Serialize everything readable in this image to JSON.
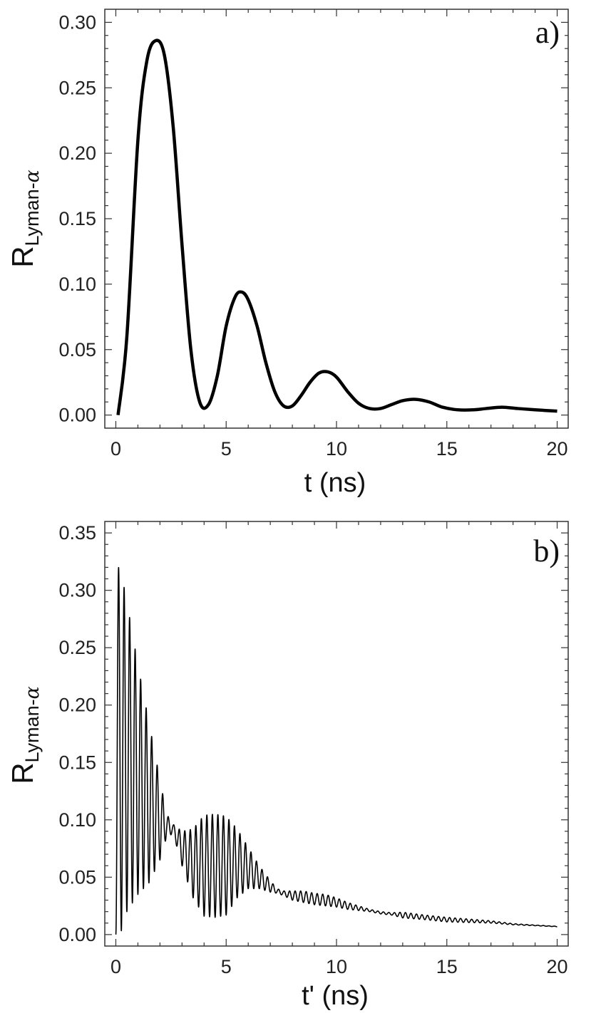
{
  "chart_data": [
    {
      "type": "line",
      "panel_label": "a)",
      "xlabel": "t (ns)",
      "ylabel_main": "R",
      "ylabel_sub": "Lyman-",
      "ylabel_greek": "α",
      "xlim": [
        -0.5,
        20.5
      ],
      "ylim": [
        -0.01,
        0.31
      ],
      "x_ticks": [
        0,
        5,
        10,
        15,
        20
      ],
      "x_tick_labels": [
        "0",
        "5",
        "10",
        "15",
        "20"
      ],
      "y_ticks": [
        0.0,
        0.05,
        0.1,
        0.15,
        0.2,
        0.25,
        0.3
      ],
      "y_tick_labels": [
        "0.00",
        "0.05",
        "0.10",
        "0.15",
        "0.20",
        "0.25",
        "0.30"
      ],
      "grid": false,
      "series": [
        {
          "style": "thick",
          "x": [
            0.1,
            0.5,
            1.0,
            1.4,
            1.8,
            2.2,
            2.6,
            3.0,
            3.4,
            3.8,
            4.2,
            4.6,
            5.0,
            5.4,
            5.7,
            6.0,
            6.4,
            6.8,
            7.2,
            7.6,
            8.0,
            8.4,
            8.8,
            9.2,
            9.6,
            10.0,
            10.5,
            11.0,
            11.5,
            12.0,
            12.5,
            13.0,
            13.6,
            14.2,
            14.8,
            15.5,
            16.2,
            16.8,
            17.5,
            18.2,
            19.0,
            20.0
          ],
          "y": [
            0.0,
            0.06,
            0.21,
            0.27,
            0.286,
            0.275,
            0.22,
            0.13,
            0.05,
            0.01,
            0.008,
            0.03,
            0.068,
            0.09,
            0.094,
            0.088,
            0.068,
            0.04,
            0.018,
            0.007,
            0.007,
            0.015,
            0.025,
            0.032,
            0.033,
            0.029,
            0.018,
            0.009,
            0.005,
            0.005,
            0.008,
            0.011,
            0.012,
            0.01,
            0.006,
            0.004,
            0.004,
            0.005,
            0.006,
            0.005,
            0.004,
            0.003
          ]
        }
      ]
    },
    {
      "type": "line",
      "panel_label": "b)",
      "xlabel": "t' (ns)",
      "ylabel_main": "R",
      "ylabel_sub": "Lyman-",
      "ylabel_greek": "α",
      "xlim": [
        -0.5,
        20.5
      ],
      "ylim": [
        -0.01,
        0.36
      ],
      "x_ticks": [
        0,
        5,
        10,
        15,
        20
      ],
      "x_tick_labels": [
        "0",
        "5",
        "10",
        "15",
        "20"
      ],
      "y_ticks": [
        0.0,
        0.05,
        0.1,
        0.15,
        0.2,
        0.25,
        0.3,
        0.35
      ],
      "y_tick_labels": [
        "0.00",
        "0.05",
        "0.10",
        "0.15",
        "0.20",
        "0.25",
        "0.30",
        "0.35"
      ],
      "grid": false,
      "oscillation_period_ns": 0.25,
      "envelope": {
        "t": [
          0.0,
          0.2,
          0.5,
          1.0,
          1.5,
          2.0,
          2.3,
          2.6,
          3.0,
          3.5,
          4.0,
          4.5,
          5.0,
          5.5,
          6.0,
          6.5,
          7.0,
          7.3,
          7.6,
          8.0,
          8.5,
          9.0,
          9.5,
          10.0,
          10.5,
          11.0,
          11.5,
          12.0,
          12.5,
          13.0,
          14.0,
          15.0,
          16.0,
          17.0,
          18.0,
          19.0,
          20.0
        ],
        "center": [
          0.16,
          0.16,
          0.155,
          0.135,
          0.115,
          0.1,
          0.095,
          0.092,
          0.075,
          0.062,
          0.06,
          0.06,
          0.06,
          0.062,
          0.058,
          0.05,
          0.042,
          0.038,
          0.036,
          0.034,
          0.033,
          0.031,
          0.03,
          0.028,
          0.025,
          0.023,
          0.021,
          0.019,
          0.018,
          0.017,
          0.015,
          0.013,
          0.012,
          0.011,
          0.009,
          0.008,
          0.007
        ],
        "amplitude": [
          0.16,
          0.16,
          0.135,
          0.1,
          0.07,
          0.035,
          0.01,
          0.004,
          0.015,
          0.03,
          0.044,
          0.045,
          0.043,
          0.03,
          0.018,
          0.01,
          0.005,
          0.002,
          0.002,
          0.004,
          0.005,
          0.005,
          0.005,
          0.004,
          0.003,
          0.002,
          0.001,
          0.001,
          0.001,
          0.0025,
          0.002,
          0.002,
          0.0015,
          0.001,
          0.0005,
          0.0003,
          0.0002
        ]
      }
    }
  ]
}
